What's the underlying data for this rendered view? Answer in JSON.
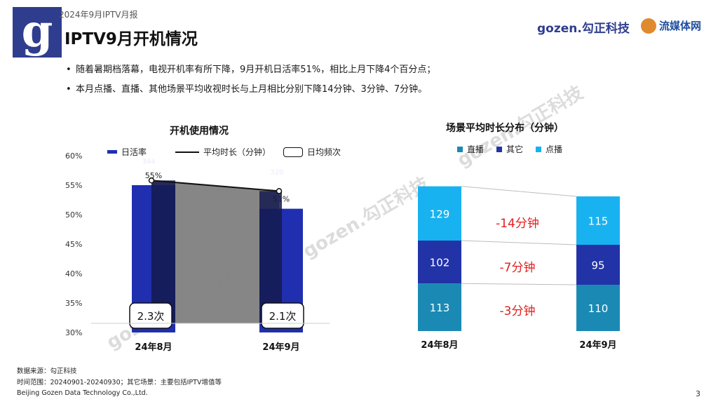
{
  "header": {
    "report_label": "2024年9月IPTV月报",
    "title": "IPTV9月开机情况",
    "brand_gozen": "gozen.勾正科技",
    "brand_lmt": "流媒体网",
    "logo_letter": "g"
  },
  "bullets": [
    "随着暑期档落幕，电视开机率有所下降，9月开机日活率51%，相比上月下降4个百分点；",
    "本月点播、直播、其他场景平均收视时长与上月相比分别下降14分钟、3分钟、7分钟。"
  ],
  "watermark": "gozen.勾正科技",
  "chart_data": [
    {
      "type": "bar",
      "title": "开机使用情况",
      "categories": [
        "24年8月",
        "24年9月"
      ],
      "legend": [
        "日活率",
        "平均时长（分钟）",
        "日均频次"
      ],
      "ylim": [
        30,
        60
      ],
      "yticks": [
        "60%",
        "55%",
        "50%",
        "45%",
        "40%",
        "35%",
        "30%"
      ],
      "bar_series": {
        "name": "日活率",
        "values": [
          55,
          51
        ],
        "labels": [
          "55%",
          "51%"
        ],
        "color": "#1f2fb0"
      },
      "line_series": {
        "name": "平均时长（分钟）",
        "values": [
          344,
          320
        ],
        "labels": [
          "344",
          "320"
        ],
        "color": "#111111"
      },
      "frequency_series": {
        "name": "日均频次",
        "labels": [
          "2.3次",
          "2.1次"
        ]
      }
    },
    {
      "type": "bar",
      "title": "场景平均时长分布（分钟）",
      "categories": [
        "24年8月",
        "24年9月"
      ],
      "legend": [
        "直播",
        "其它",
        "点播"
      ],
      "stacked": true,
      "series": [
        {
          "name": "直播",
          "values": [
            113,
            110
          ],
          "color": "#1a8ab5"
        },
        {
          "name": "其它",
          "values": [
            102,
            95
          ],
          "color": "#2233a8"
        },
        {
          "name": "点播",
          "values": [
            129,
            115
          ],
          "color": "#19b2f0"
        }
      ],
      "change_labels": [
        "-14分钟",
        "-7分钟",
        "-3分钟"
      ],
      "change_color": "#e02020"
    }
  ],
  "footer": {
    "source": "数据来源：勾正科技",
    "range": "时间范围：20240901-20240930；其它场景：主要包括IPTV增值等",
    "company": "Beijing Gozen Data Technology Co.,Ltd.",
    "page": "3"
  }
}
